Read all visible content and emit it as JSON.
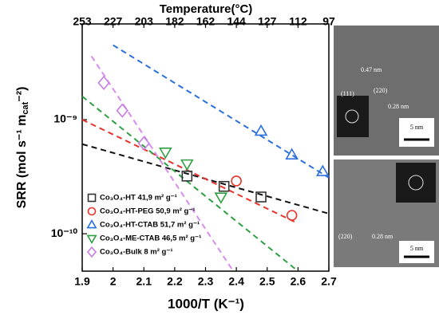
{
  "chart_data": {
    "type": "scatter",
    "log_y": true,
    "x_label": "1000/T (K⁻¹)",
    "y_label_parts": [
      "SRR (mol s⁻¹ m",
      "cat",
      "⁻²)"
    ],
    "x2_label": "Temperature(°C)",
    "xlim": [
      1.9,
      2.7
    ],
    "xticks": [
      1.9,
      2.0,
      2.1,
      2.2,
      2.3,
      2.4,
      2.5,
      2.6,
      2.7
    ],
    "x2ticks": [
      {
        "value": 1.9,
        "label": "253"
      },
      {
        "value": 2.0,
        "label": "227"
      },
      {
        "value": 2.1,
        "label": "203"
      },
      {
        "value": 2.2,
        "label": "182"
      },
      {
        "value": 2.3,
        "label": "162"
      },
      {
        "value": 2.4,
        "label": "144"
      },
      {
        "value": 2.5,
        "label": "127"
      },
      {
        "value": 2.6,
        "label": "112"
      },
      {
        "value": 2.7,
        "label": "97"
      }
    ],
    "ylim": [
      4.7e-11,
      6.9e-09
    ],
    "yticks": [
      {
        "value": 1e-09,
        "label": "10⁻⁹"
      },
      {
        "value": 1e-10,
        "label": "10⁻¹⁰"
      }
    ],
    "legend": "lower left",
    "series": [
      {
        "name": "Co₃O₄-HT 41,9 m² g⁻¹",
        "color": "#333333",
        "marker": "square",
        "x": [
          2.24,
          2.36,
          2.48
        ],
        "values": [
          3.2e-10,
          2.6e-10,
          2.1e-10
        ]
      },
      {
        "name": "Co₃O₄-HT-PEG 50,9 m² g⁻¹",
        "color": "#e8322c",
        "marker": "circle",
        "x": [
          2.4,
          2.58
        ],
        "values": [
          2.9e-10,
          1.45e-10
        ]
      },
      {
        "name": "Co₃O₄-HT-CTAB 51,7 m² g⁻¹",
        "color": "#2a6fdb",
        "marker": "triangle",
        "x": [
          2.48,
          2.58,
          2.68
        ],
        "values": [
          7.9e-10,
          4.9e-10,
          3.5e-10
        ]
      },
      {
        "name": "Co₃O₄-ME-CTAB 46,5 m² g⁻¹",
        "color": "#2ea043",
        "marker": "triangle-down",
        "x": [
          2.17,
          2.24,
          2.35
        ],
        "values": [
          5.2e-10,
          4.1e-10,
          2.1e-10
        ]
      },
      {
        "name": "Co₃O₄-Bulk 8 m² g⁻¹",
        "color": "#c77de0",
        "marker": "diamond",
        "x": [
          1.97,
          2.03,
          2.1
        ],
        "values": [
          2.1e-09,
          1.2e-09,
          6.2e-10
        ]
      }
    ],
    "fits": [
      {
        "color": "#111111",
        "x": [
          1.9,
          2.7
        ],
        "values": [
          6.1e-10,
          1.5e-10
        ]
      },
      {
        "color": "#e8322c",
        "x": [
          1.9,
          2.6
        ],
        "values": [
          1e-09,
          1.23e-10
        ]
      },
      {
        "color": "#2a6fdb",
        "x": [
          2.0,
          2.7
        ],
        "values": [
          4.5e-09,
          3.1e-10
        ]
      },
      {
        "color": "#2ea043",
        "x": [
          1.9,
          2.6
        ],
        "values": [
          1.6e-09,
          4.7e-11
        ]
      },
      {
        "color": "#d98cf0",
        "x": [
          1.93,
          2.39
        ],
        "values": [
          3.6e-09,
          4.7e-11
        ]
      }
    ]
  },
  "micrographs": [
    {
      "labels": [
        "0.47 nm",
        "(111)",
        "(220)",
        "0.28 nm"
      ],
      "scale": "5 nm"
    },
    {
      "labels": [
        "(220)",
        "0.28 nm"
      ],
      "scale": "5 nm"
    }
  ]
}
